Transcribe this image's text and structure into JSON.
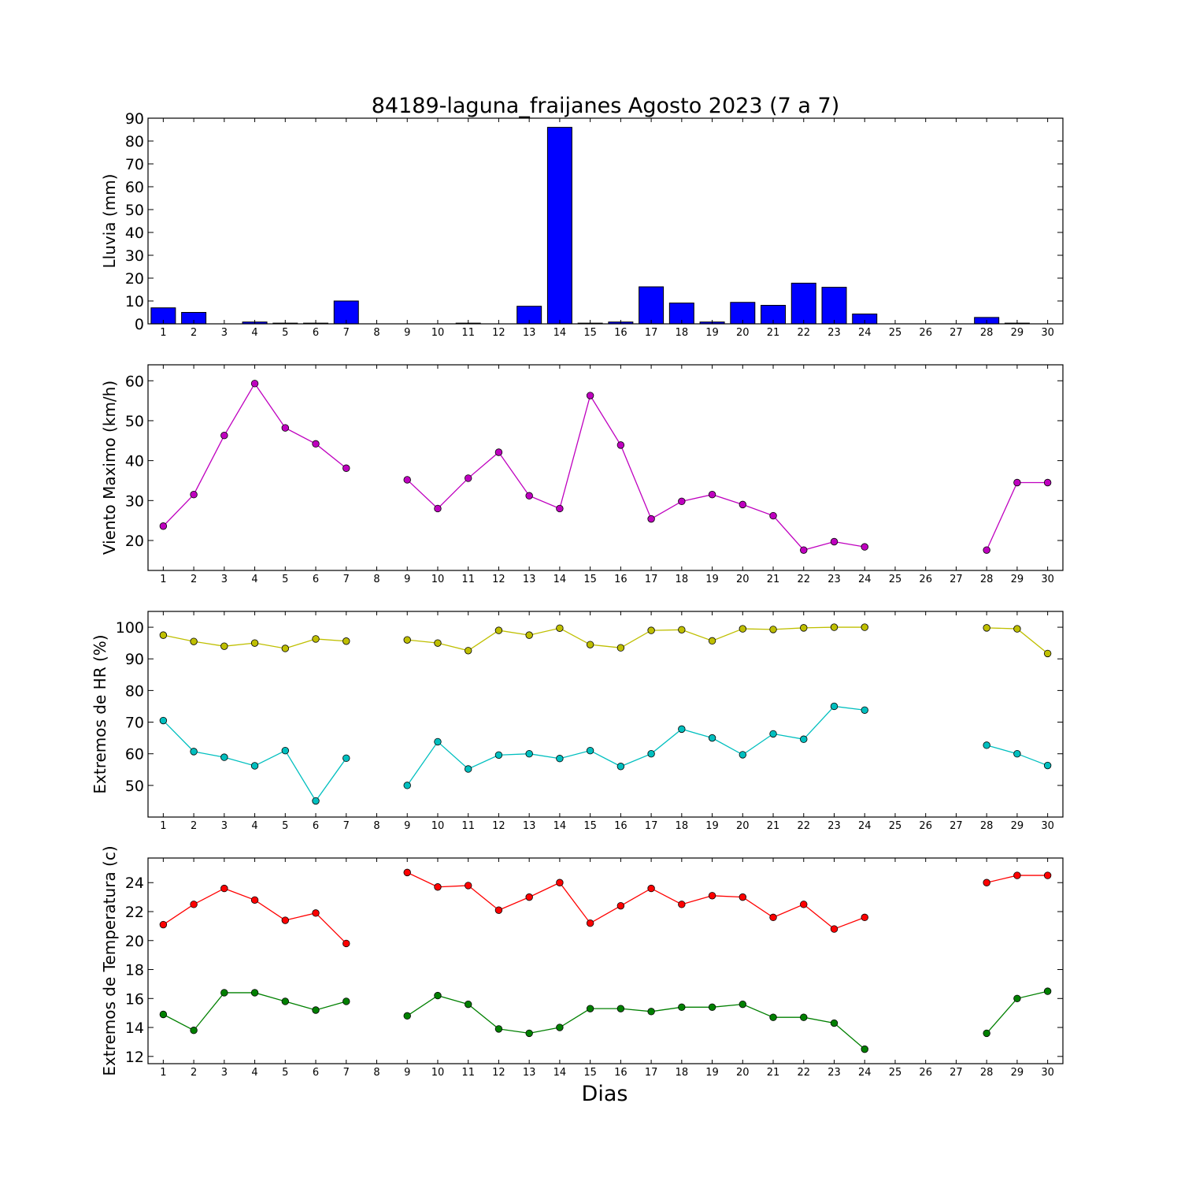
{
  "title": "84189-laguna_fraijanes Agosto 2023  (7 a 7)",
  "xlabel": "Dias",
  "colors": {
    "rain": "#0000ff",
    "wind": "#bf00bf",
    "rh_max": "#bfbf00",
    "rh_min": "#00bfbf",
    "temp_max": "#ff0000",
    "temp_min": "#008000"
  },
  "chart_data": [
    {
      "type": "bar",
      "ylabel": "Lluvia (mm)",
      "ylim": [
        0,
        90
      ],
      "yticks": [
        0,
        10,
        20,
        30,
        40,
        50,
        60,
        70,
        80,
        90
      ],
      "xlim": [
        0.5,
        30.5
      ],
      "x": [
        1,
        2,
        3,
        4,
        5,
        6,
        7,
        8,
        9,
        10,
        11,
        12,
        13,
        14,
        15,
        16,
        17,
        18,
        19,
        20,
        21,
        22,
        23,
        24,
        25,
        26,
        27,
        28,
        29,
        30
      ],
      "series": [
        {
          "values": [
            7.0,
            5.0,
            0.0,
            0.8,
            0.3,
            0.3,
            10.0,
            0.0,
            0.0,
            0.0,
            0.3,
            0.0,
            7.7,
            86.0,
            0.3,
            0.8,
            16.2,
            9.1,
            0.8,
            9.4,
            8.1,
            17.8,
            16.0,
            4.3,
            0.0,
            0.0,
            0.0,
            2.8,
            0.3,
            0.0
          ]
        }
      ]
    },
    {
      "type": "line",
      "ylabel": "Viento Maximo (km/h)",
      "ylim": [
        12.5,
        64
      ],
      "yticks": [
        20,
        30,
        40,
        50,
        60
      ],
      "xlim": [
        0.5,
        30.5
      ],
      "x": [
        1,
        2,
        3,
        4,
        5,
        6,
        7,
        8,
        9,
        10,
        11,
        12,
        13,
        14,
        15,
        16,
        17,
        18,
        19,
        20,
        21,
        22,
        23,
        24,
        25,
        26,
        27,
        28,
        29,
        30
      ],
      "series": [
        {
          "values": [
            23.6,
            31.5,
            46.3,
            59.3,
            48.2,
            44.2,
            38.1,
            null,
            35.2,
            28.0,
            35.6,
            42.1,
            31.2,
            28.0,
            56.3,
            43.9,
            25.4,
            29.8,
            31.5,
            29.0,
            26.2,
            17.6,
            19.7,
            18.4,
            null,
            null,
            null,
            17.6,
            34.5,
            34.5
          ]
        }
      ]
    },
    {
      "type": "line",
      "ylabel": "Extremos de HR (%)",
      "ylim": [
        40,
        105
      ],
      "yticks": [
        50,
        60,
        70,
        80,
        90,
        100
      ],
      "xlim": [
        0.5,
        30.5
      ],
      "x": [
        1,
        2,
        3,
        4,
        5,
        6,
        7,
        8,
        9,
        10,
        11,
        12,
        13,
        14,
        15,
        16,
        17,
        18,
        19,
        20,
        21,
        22,
        23,
        24,
        25,
        26,
        27,
        28,
        29,
        30
      ],
      "series": [
        {
          "values": [
            97.5,
            95.5,
            94.0,
            95.0,
            93.3,
            96.3,
            95.6,
            null,
            96.0,
            95.0,
            92.6,
            99.0,
            97.5,
            99.7,
            94.5,
            93.5,
            99.0,
            99.2,
            95.7,
            99.5,
            99.3,
            99.8,
            100.0,
            100.0,
            null,
            null,
            null,
            99.8,
            99.5,
            91.7
          ]
        },
        {
          "values": [
            70.5,
            60.7,
            58.9,
            56.2,
            61.0,
            45.1,
            58.6,
            null,
            50.0,
            63.8,
            55.2,
            59.6,
            60.0,
            58.5,
            61.0,
            56.0,
            60.0,
            67.8,
            65.0,
            59.7,
            66.3,
            64.6,
            75.0,
            73.8,
            null,
            null,
            null,
            62.7,
            60.0,
            56.3
          ]
        }
      ]
    },
    {
      "type": "line",
      "ylabel": "Extremos de Temperatura (c)",
      "ylim": [
        11.5,
        25.7
      ],
      "yticks": [
        12,
        14,
        16,
        18,
        20,
        22,
        24
      ],
      "xlim": [
        0.5,
        30.5
      ],
      "x": [
        1,
        2,
        3,
        4,
        5,
        6,
        7,
        8,
        9,
        10,
        11,
        12,
        13,
        14,
        15,
        16,
        17,
        18,
        19,
        20,
        21,
        22,
        23,
        24,
        25,
        26,
        27,
        28,
        29,
        30
      ],
      "series": [
        {
          "values": [
            21.1,
            22.5,
            23.6,
            22.8,
            21.4,
            21.9,
            19.8,
            null,
            24.7,
            23.7,
            23.8,
            22.1,
            23.0,
            24.0,
            21.2,
            22.4,
            23.6,
            22.5,
            23.1,
            23.0,
            21.6,
            22.5,
            20.8,
            21.6,
            null,
            null,
            null,
            24.0,
            24.5,
            24.5
          ]
        },
        {
          "values": [
            14.9,
            13.8,
            16.4,
            16.4,
            15.8,
            15.2,
            15.8,
            null,
            14.8,
            16.2,
            15.6,
            13.9,
            13.6,
            14.0,
            15.3,
            15.3,
            15.1,
            15.4,
            15.4,
            15.6,
            14.7,
            14.7,
            14.3,
            12.5,
            null,
            null,
            null,
            13.6,
            16.0,
            16.5
          ]
        }
      ]
    }
  ]
}
